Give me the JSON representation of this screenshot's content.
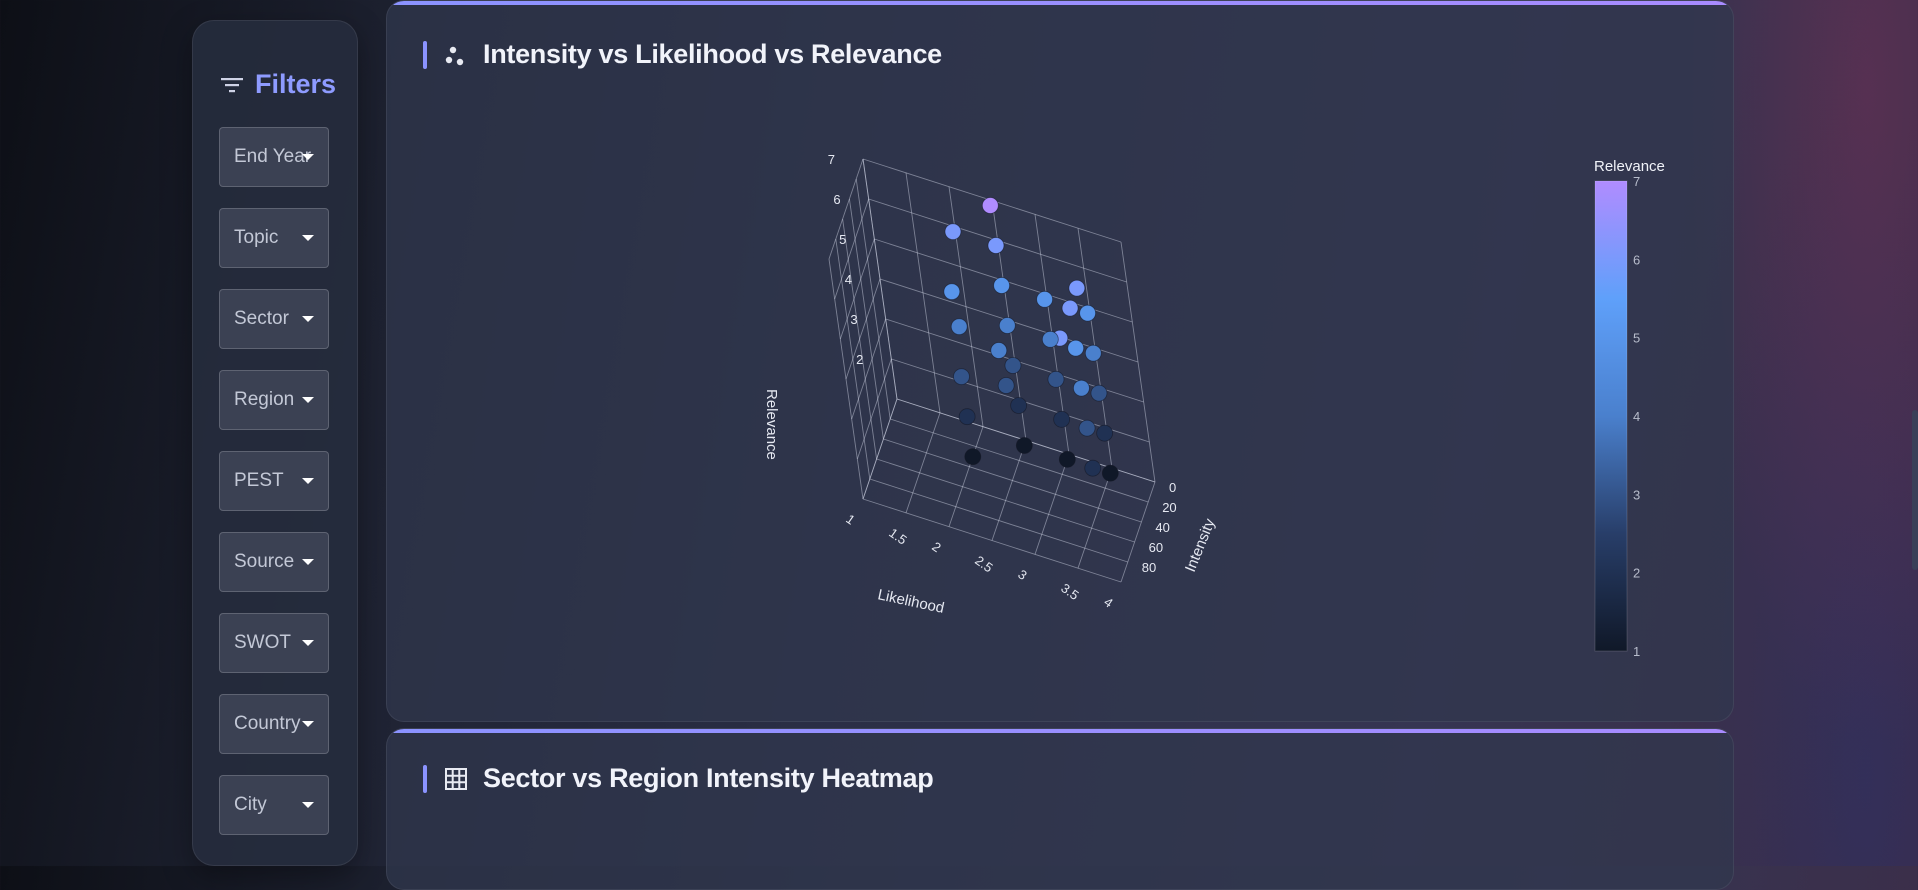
{
  "filters": {
    "title": "Filters",
    "items": [
      {
        "label": "End Year"
      },
      {
        "label": "Topic"
      },
      {
        "label": "Sector"
      },
      {
        "label": "Region"
      },
      {
        "label": "PEST"
      },
      {
        "label": "Source"
      },
      {
        "label": "SWOT"
      },
      {
        "label": "Country"
      },
      {
        "label": "City"
      }
    ]
  },
  "cards": {
    "scatter": {
      "title": "Intensity vs Likelihood vs Relevance",
      "icon": "scatter-icon"
    },
    "heatmap": {
      "title": "Sector vs Region Intensity Heatmap",
      "icon": "grid-icon"
    }
  },
  "colors": {
    "accent": "#8b93ff",
    "colorscale_low": "#101828",
    "colorscale_mid": "#5aa0f5",
    "colorscale_high": "#b08cff"
  },
  "chart_data": {
    "type": "scatter",
    "title": "",
    "xlabel": "Likelihood",
    "ylabel": "Intensity",
    "zlabel": "Relevance",
    "x_ticks": [
      "1",
      "1.5",
      "2",
      "2.5",
      "3",
      "3.5",
      "4"
    ],
    "y_ticks": [
      "0",
      "20",
      "40",
      "60",
      "80"
    ],
    "z_ticks": [
      "2",
      "3",
      "4",
      "5",
      "6",
      "7"
    ],
    "xlim": [
      1,
      4
    ],
    "ylim": [
      0,
      100
    ],
    "zlim": [
      1,
      7
    ],
    "colorbar": {
      "title": "Relevance",
      "ticks": [
        "1",
        "2",
        "3",
        "4",
        "5",
        "6",
        "7"
      ],
      "range": [
        1,
        7
      ]
    },
    "points": [
      {
        "x": 2,
        "y": 30,
        "z": 1
      },
      {
        "x": 2,
        "y": 30,
        "z": 2
      },
      {
        "x": 2,
        "y": 30,
        "z": 3
      },
      {
        "x": 2,
        "y": 20,
        "z": 4
      },
      {
        "x": 2,
        "y": 25,
        "z": 5
      },
      {
        "x": 2,
        "y": 5,
        "z": 6
      },
      {
        "x": 2.5,
        "y": 5,
        "z": 1
      },
      {
        "x": 2.5,
        "y": 5,
        "z": 2
      },
      {
        "x": 2.5,
        "y": 5,
        "z": 3
      },
      {
        "x": 2.5,
        "y": 5,
        "z": 4
      },
      {
        "x": 2.5,
        "y": 5,
        "z": 5
      },
      {
        "x": 2.5,
        "y": 5,
        "z": 6
      },
      {
        "x": 2.5,
        "y": 5,
        "z": 7
      },
      {
        "x": 2.5,
        "y": 25,
        "z": 3
      },
      {
        "x": 2.5,
        "y": 30,
        "z": 4
      },
      {
        "x": 3,
        "y": 5,
        "z": 1
      },
      {
        "x": 3,
        "y": 5,
        "z": 2
      },
      {
        "x": 3,
        "y": 5,
        "z": 3
      },
      {
        "x": 3,
        "y": 5,
        "z": 4
      },
      {
        "x": 3,
        "y": 5,
        "z": 5
      },
      {
        "x": 3.5,
        "y": 5,
        "z": 1
      },
      {
        "x": 3.5,
        "y": 5,
        "z": 2
      },
      {
        "x": 3.5,
        "y": 5,
        "z": 3
      },
      {
        "x": 3.5,
        "y": 5,
        "z": 4
      },
      {
        "x": 3.5,
        "y": 5,
        "z": 5
      },
      {
        "x": 3.5,
        "y": 40,
        "z": 2
      },
      {
        "x": 3.5,
        "y": 40,
        "z": 3
      },
      {
        "x": 3.5,
        "y": 40,
        "z": 4
      },
      {
        "x": 3.5,
        "y": 40,
        "z": 5
      },
      {
        "x": 3.5,
        "y": 40,
        "z": 6
      },
      {
        "x": 3.5,
        "y": 20,
        "z": 6
      },
      {
        "x": 3.5,
        "y": 70,
        "z": 6
      }
    ]
  }
}
